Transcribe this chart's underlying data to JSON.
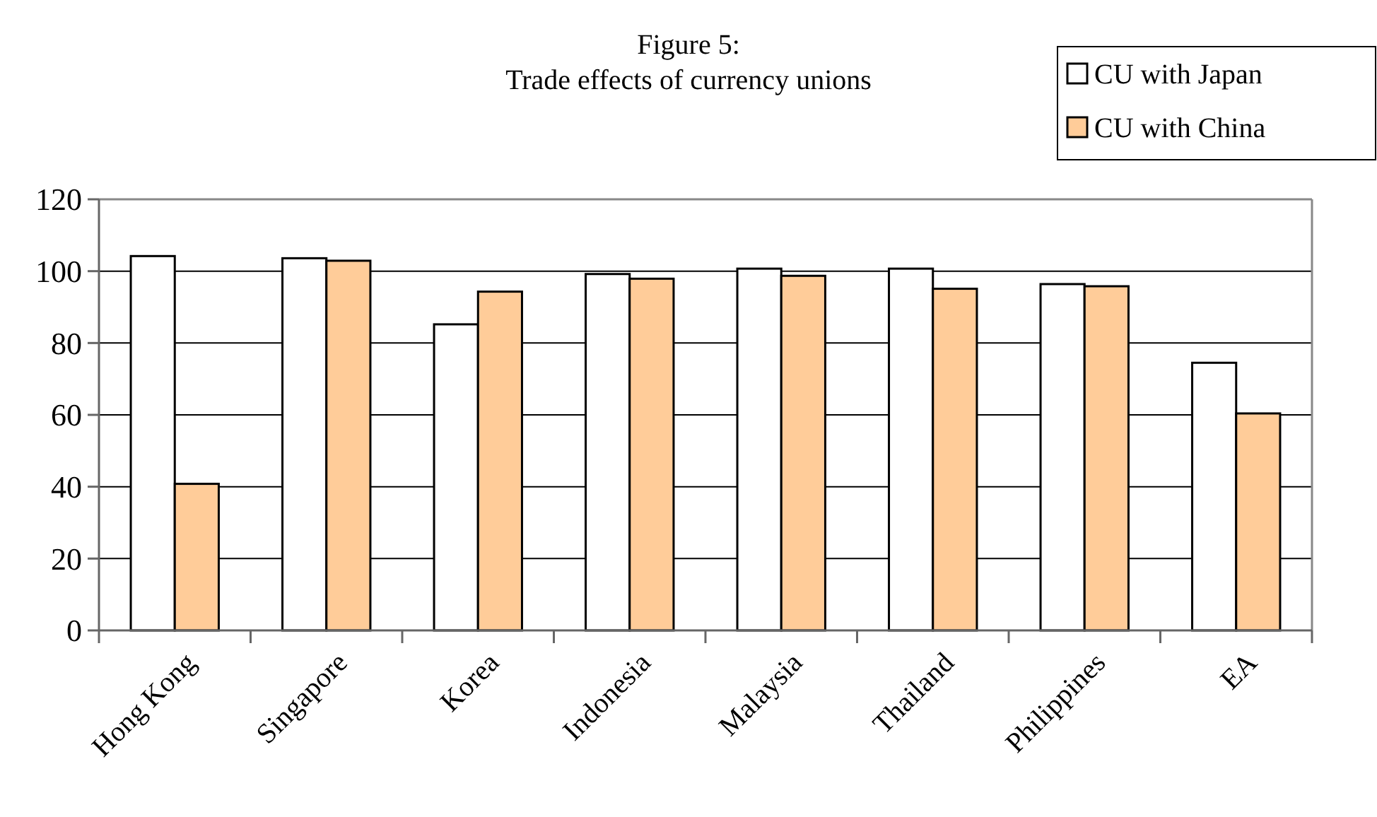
{
  "chart_data": {
    "type": "bar",
    "title": "Figure 5:\nTrade effects of currency unions",
    "categories": [
      "Hong Kong",
      "Singapore",
      "Korea",
      "Indonesia",
      "Malaysia",
      "Thailand",
      "Philippines",
      "EA"
    ],
    "series": [
      {
        "name": "CU with Japan",
        "color": "#ffffff",
        "values": [
          104.2,
          103.6,
          85.2,
          99.2,
          100.7,
          100.7,
          96.4,
          74.5
        ]
      },
      {
        "name": "CU with China",
        "color": "#ffcc99",
        "values": [
          40.8,
          102.9,
          94.3,
          97.9,
          98.7,
          95.1,
          95.8,
          60.4
        ]
      }
    ],
    "ylim": [
      0,
      120
    ],
    "yticks": [
      0,
      20,
      40,
      60,
      80,
      100,
      120
    ],
    "grid": "y",
    "legend": "top right"
  }
}
